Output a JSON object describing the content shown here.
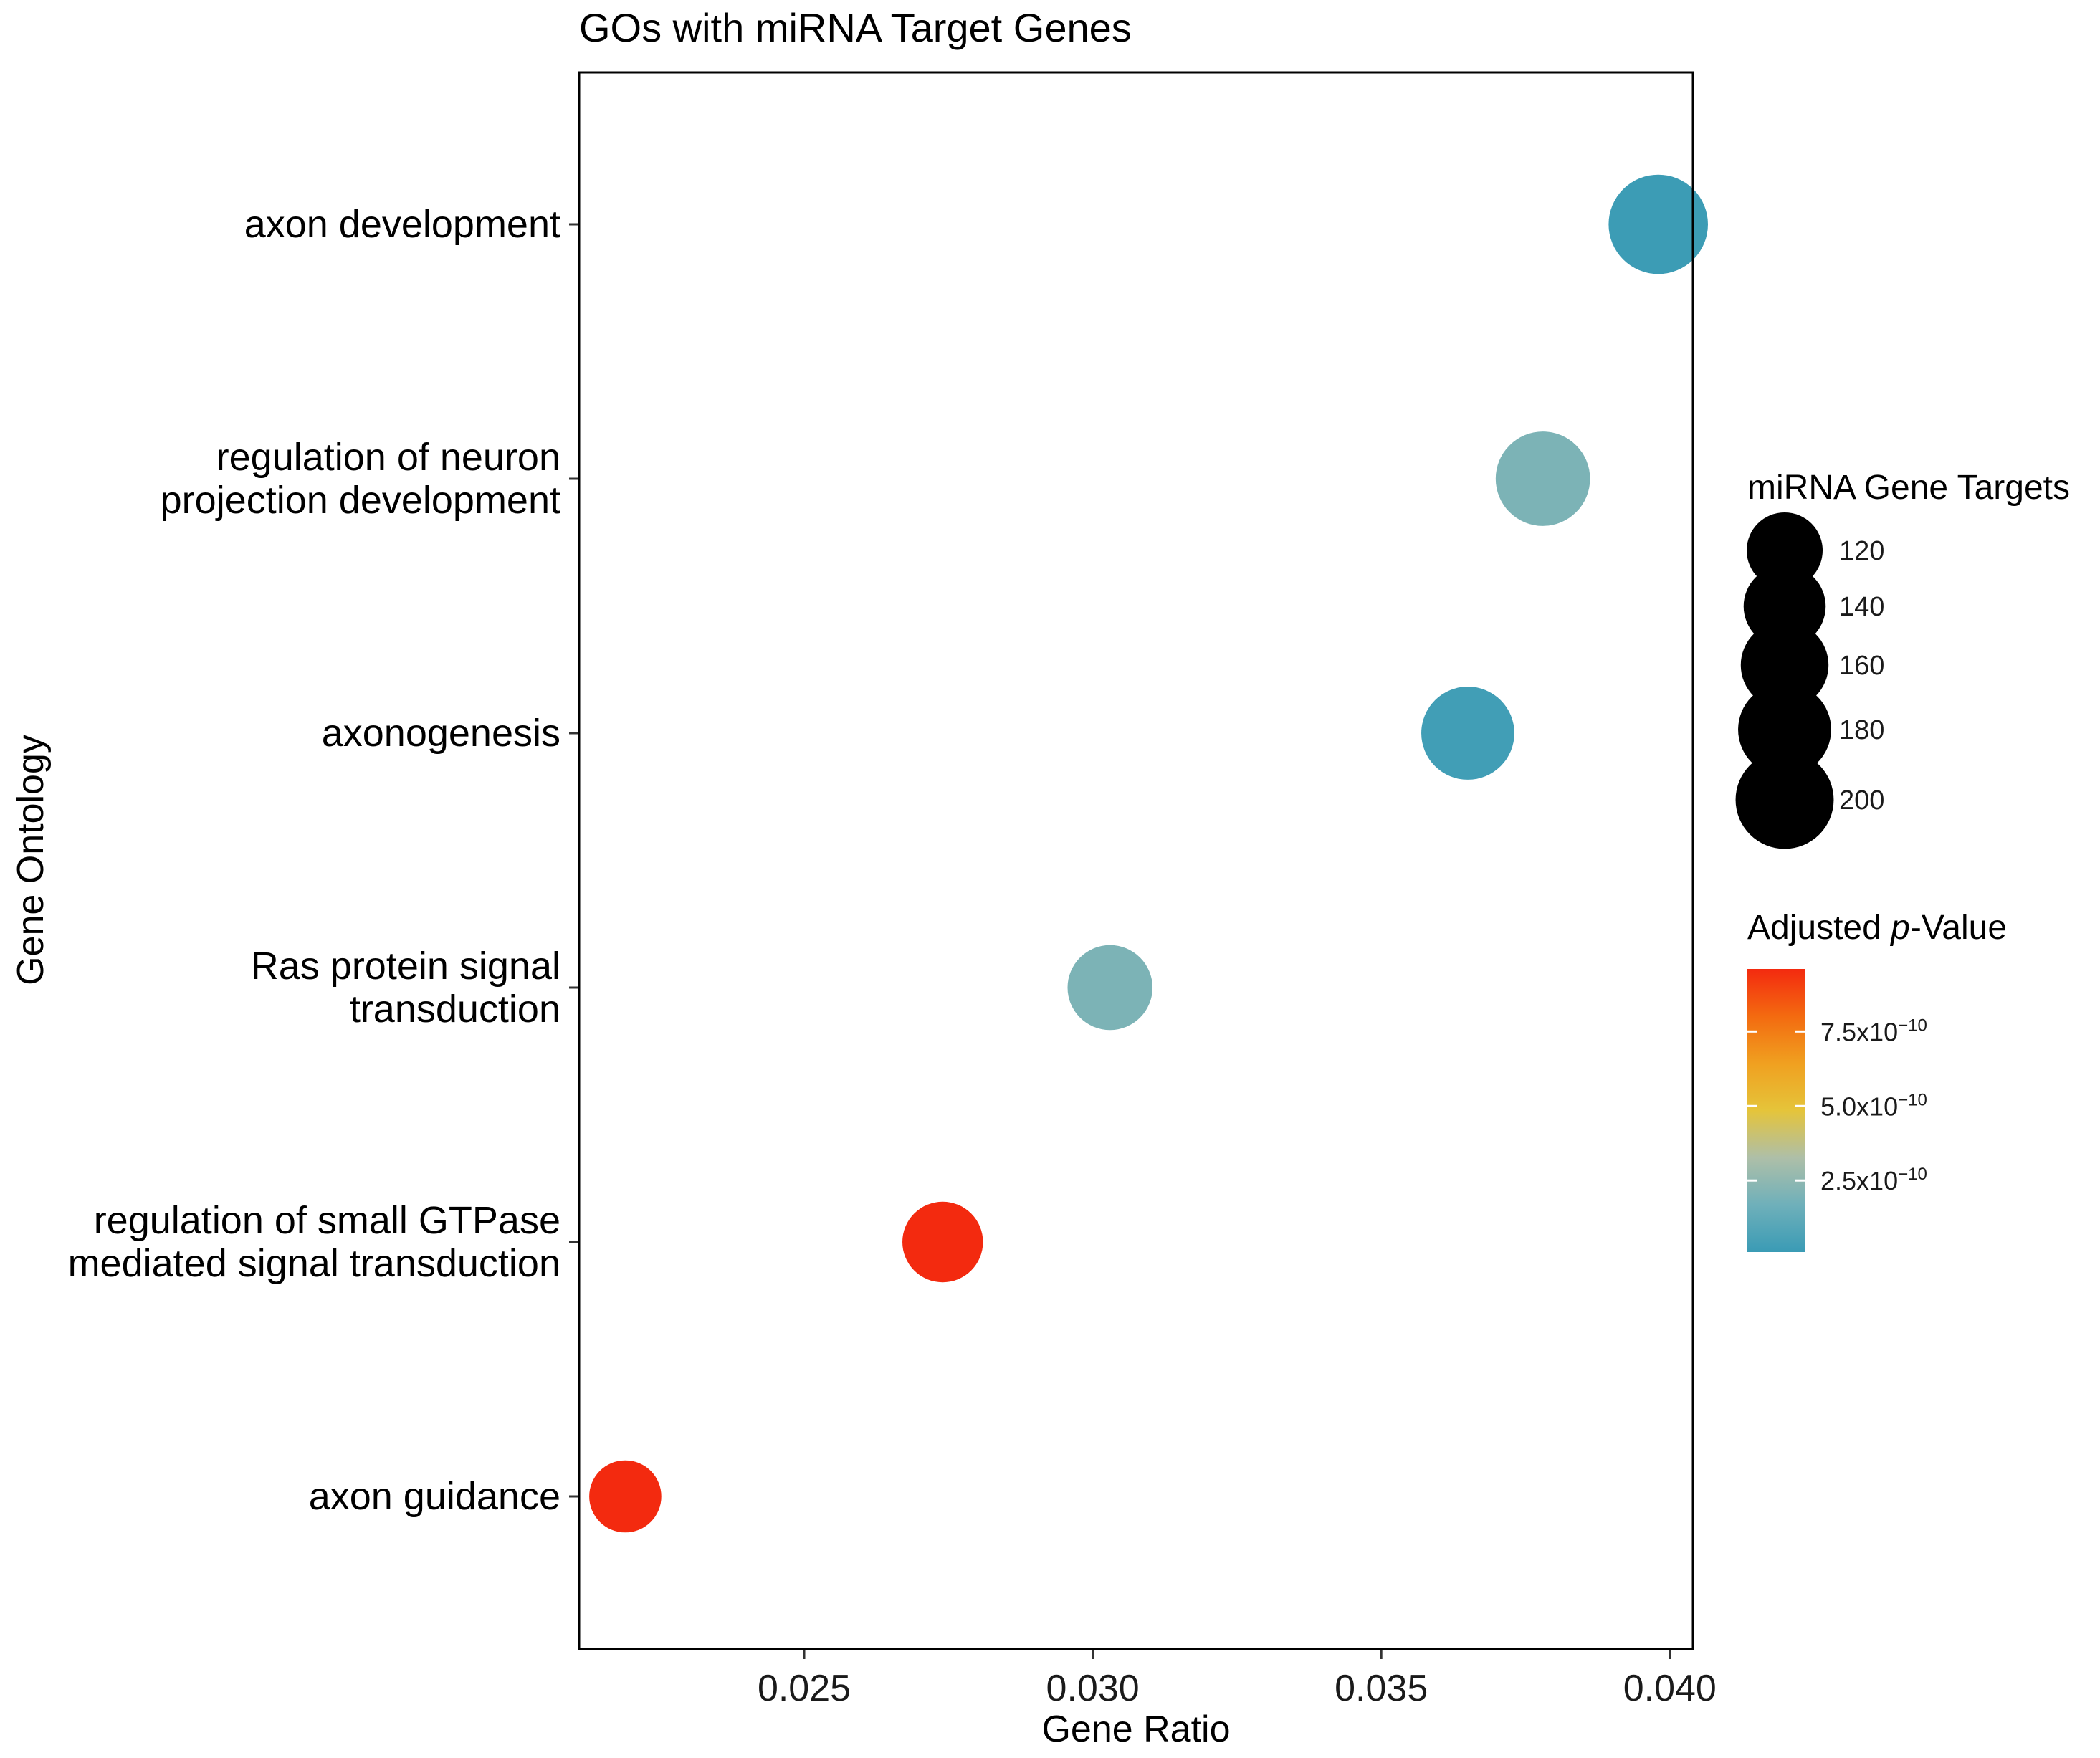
{
  "chart_data": {
    "type": "scatter",
    "title": "GOs with miRNA Target Genes",
    "xlabel": "Gene Ratio",
    "ylabel": "Gene Ontology",
    "xlim": [
      0.0211,
      0.0404
    ],
    "x_ticks": [
      {
        "value": 0.025,
        "label": "0.025"
      },
      {
        "value": 0.03,
        "label": "0.030"
      },
      {
        "value": 0.035,
        "label": "0.035"
      },
      {
        "value": 0.04,
        "label": "0.040"
      }
    ],
    "grid": false,
    "points": [
      {
        "term": "axon development",
        "label_lines": [
          "axon development"
        ],
        "gene_ratio": 0.0398,
        "targets": 205,
        "p_adjusted": 1.5e-11
      },
      {
        "term": "regulation of neuron projection development",
        "label_lines": [
          "regulation of neuron",
          "projection development"
        ],
        "gene_ratio": 0.0378,
        "targets": 185,
        "p_adjusted": 2e-10
      },
      {
        "term": "axonogenesis",
        "label_lines": [
          "axonogenesis"
        ],
        "gene_ratio": 0.0365,
        "targets": 180,
        "p_adjusted": 3e-11
      },
      {
        "term": "Ras protein signal transduction",
        "label_lines": [
          "Ras protein signal",
          "transduction"
        ],
        "gene_ratio": 0.0303,
        "targets": 150,
        "p_adjusted": 2e-10
      },
      {
        "term": "regulation of small GTPase mediated signal transduction",
        "label_lines": [
          "regulation of small GTPase",
          "mediated signal transduction"
        ],
        "gene_ratio": 0.0274,
        "targets": 135,
        "p_adjusted": 9.6e-10
      },
      {
        "term": "axon guidance",
        "label_lines": [
          "axon guidance"
        ],
        "gene_ratio": 0.0219,
        "targets": 108,
        "p_adjusted": 9.6e-10
      }
    ],
    "size_legend": {
      "title": "miRNA Gene Targets",
      "values": [
        120,
        140,
        160,
        180,
        200
      ],
      "labels": [
        "120",
        "140",
        "160",
        "180",
        "200"
      ]
    },
    "color_legend": {
      "title_prefix": "Adjusted ",
      "title_italic": "p",
      "title_suffix": "-Value",
      "range": [
        1e-11,
        9.6e-10
      ],
      "colors": [
        "#3a9bb5",
        "#6fb0ba",
        "#aebfa8",
        "#e5c43a",
        "#f0a020",
        "#f36a10",
        "#f32a0f"
      ],
      "ticks": [
        {
          "value": 2.5e-10,
          "mantissa": "2.5x10",
          "exponent": "−10"
        },
        {
          "value": 5e-10,
          "mantissa": "5.0x10",
          "exponent": "−10"
        },
        {
          "value": 7.5e-10,
          "mantissa": "7.5x10",
          "exponent": "−10"
        }
      ]
    }
  }
}
